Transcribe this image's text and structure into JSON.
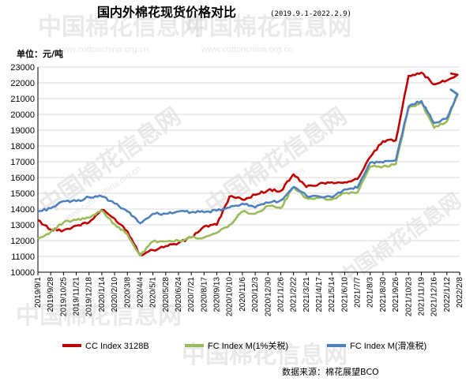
{
  "title": "国内外棉花现货价格对比",
  "subtitle": "(2019.9.1-2022.2.9)",
  "unit_label": "单位：元/吨",
  "source": "数据来源：棉花展望BCO",
  "watermark": {
    "text": "中国棉花信息网",
    "url": "www.cottonchina.org.cn"
  },
  "colors": {
    "cc": "#c00000",
    "fc1": "#9bbb59",
    "fcs": "#4f81bd",
    "grid": "#d9d9d9",
    "axis": "#000000"
  },
  "chart_data": {
    "type": "line",
    "title": "国内外棉花现货价格对比",
    "subtitle": "(2019.9.1-2022.2.9)",
    "ylabel": "单位：元/吨",
    "ylim": [
      10000,
      23000
    ],
    "yticks": [
      10000,
      11000,
      12000,
      13000,
      14000,
      15000,
      16000,
      17000,
      18000,
      19000,
      20000,
      21000,
      22000,
      23000
    ],
    "x_categories": [
      "2019/9/1",
      "2019/9/28",
      "2019/10/25",
      "2019/11/21",
      "2019/12/18",
      "2020/1/14",
      "2020/2/10",
      "2020/3/8",
      "2020/4/4",
      "2020/5/1",
      "2020/5/28",
      "2020/6/24",
      "2020/7/21",
      "2020/8/17",
      "2020/9/13",
      "2020/10/10",
      "2020/11/6",
      "2020/12/3",
      "2020/12/30",
      "2021/1/26",
      "2021/2/22",
      "2021/3/21",
      "2021/4/17",
      "2021/5/14",
      "2021/6/10",
      "2021/7/7",
      "2021/8/3",
      "2021/8/30",
      "2021/9/26",
      "2021/10/23",
      "2021/11/19",
      "2021/12/16",
      "2022/1/12",
      "2022/2/8"
    ],
    "grid": true,
    "legend_position": "bottom",
    "series": [
      {
        "name": "CC Index 3128B",
        "color_key": "cc",
        "values": [
          13300,
          12700,
          12650,
          12950,
          13150,
          13950,
          13400,
          12600,
          11100,
          11400,
          11650,
          11850,
          12200,
          12900,
          13000,
          14800,
          14600,
          14900,
          15200,
          15150,
          16200,
          15400,
          15600,
          15700,
          15700,
          15900,
          17300,
          18300,
          18350,
          22450,
          22650,
          21900,
          22150,
          null
        ],
        "end_value": 22600
      },
      {
        "name": "FC Index M(1%关税)",
        "color_key": "fc1",
        "values": [
          12100,
          12550,
          13150,
          13300,
          13450,
          13900,
          13050,
          12400,
          11050,
          11950,
          11950,
          12000,
          12200,
          12200,
          12500,
          13000,
          13850,
          13700,
          14200,
          14050,
          15400,
          14700,
          14700,
          14600,
          15000,
          15050,
          16700,
          16700,
          16850,
          20400,
          20750,
          19150,
          19550,
          null
        ],
        "end_value": 21600
      },
      {
        "name": "FC Index M(滑准税)",
        "color_key": "fcs",
        "values": [
          13850,
          14050,
          14500,
          14500,
          14750,
          14800,
          14350,
          13850,
          13100,
          13700,
          13700,
          13850,
          13800,
          13800,
          13900,
          14100,
          14350,
          14100,
          14400,
          14550,
          15400,
          14850,
          14800,
          14750,
          15250,
          15350,
          16950,
          16950,
          17100,
          20500,
          20850,
          19450,
          19750,
          null
        ],
        "end_value": 21600
      }
    ]
  }
}
